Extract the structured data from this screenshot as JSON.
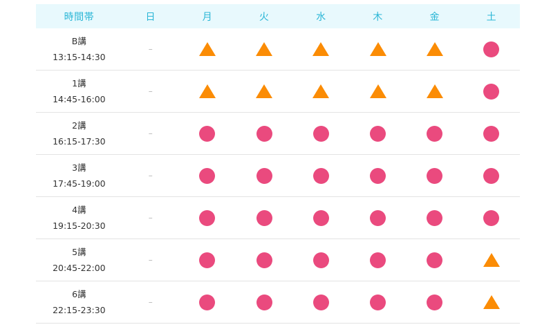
{
  "header": {
    "time_label": "時間帯",
    "days": [
      "日",
      "月",
      "火",
      "水",
      "木",
      "金",
      "土"
    ]
  },
  "colors": {
    "header_text": "#2ab6d6",
    "header_bg": "#e8f9fd",
    "available": "#ea4a7e",
    "limited": "#fb8c05"
  },
  "legend_icons": {
    "available": "circle-icon",
    "limited": "triangle-icon",
    "none": "dash"
  },
  "rows": [
    {
      "name": "B講",
      "time": "13:15-14:30",
      "status": [
        "dash",
        "triangle",
        "triangle",
        "triangle",
        "triangle",
        "triangle",
        "circle"
      ]
    },
    {
      "name": "1講",
      "time": "14:45-16:00",
      "status": [
        "dash",
        "triangle",
        "triangle",
        "triangle",
        "triangle",
        "triangle",
        "circle"
      ]
    },
    {
      "name": "2講",
      "time": "16:15-17:30",
      "status": [
        "dash",
        "circle",
        "circle",
        "circle",
        "circle",
        "circle",
        "circle"
      ]
    },
    {
      "name": "3講",
      "time": "17:45-19:00",
      "status": [
        "dash",
        "circle",
        "circle",
        "circle",
        "circle",
        "circle",
        "circle"
      ]
    },
    {
      "name": "4講",
      "time": "19:15-20:30",
      "status": [
        "dash",
        "circle",
        "circle",
        "circle",
        "circle",
        "circle",
        "circle"
      ]
    },
    {
      "name": "5講",
      "time": "20:45-22:00",
      "status": [
        "dash",
        "circle",
        "circle",
        "circle",
        "circle",
        "circle",
        "triangle"
      ]
    },
    {
      "name": "6講",
      "time": "22:15-23:30",
      "status": [
        "dash",
        "circle",
        "circle",
        "circle",
        "circle",
        "circle",
        "triangle"
      ]
    }
  ],
  "dash_symbol": "–"
}
